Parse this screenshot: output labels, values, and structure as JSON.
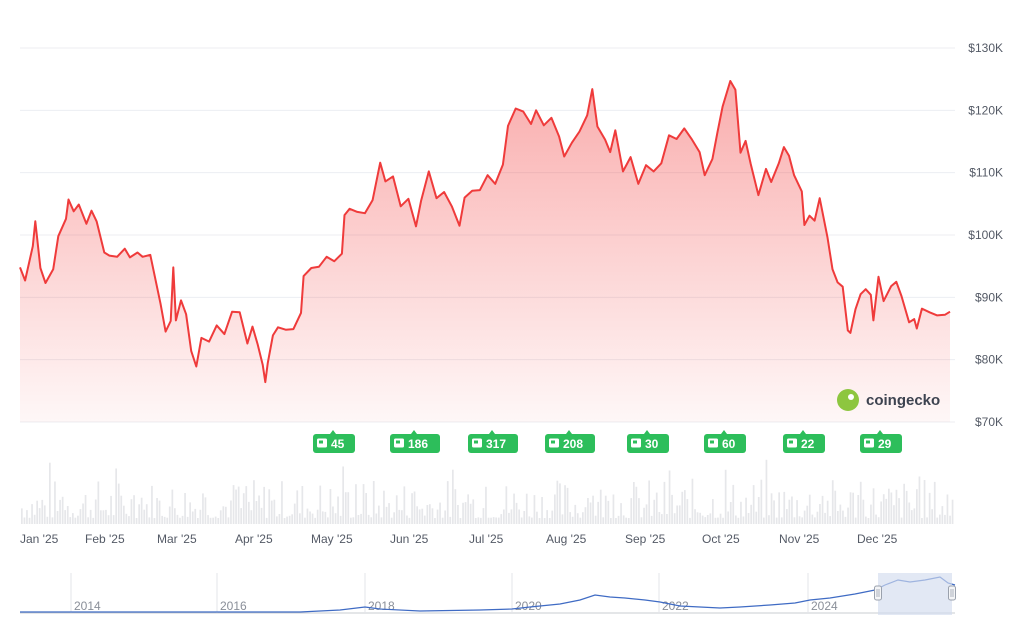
{
  "chart_data": {
    "type": "area",
    "title": "",
    "xlabel": "",
    "ylabel": "",
    "ylim": [
      70000,
      130000
    ],
    "y_ticks": [
      70000,
      80000,
      90000,
      100000,
      110000,
      120000,
      130000
    ],
    "y_tick_labels": [
      "$70K",
      "$80K",
      "$90K",
      "$100K",
      "$110K",
      "$120K",
      "$130K"
    ],
    "x_tick_labels": [
      "Jan '25",
      "Feb '25",
      "Mar '25",
      "Apr '25",
      "May '25",
      "Jun '25",
      "Jul '25",
      "Aug '25",
      "Sep '25",
      "Oct '25",
      "Nov '25",
      "Dec '25"
    ],
    "grid": true,
    "series_color": "#ef3b3b",
    "series": [
      {
        "points": [
          [
            "2025-01-01",
            94800
          ],
          [
            "2025-01-03",
            92700
          ],
          [
            "2025-01-06",
            98200
          ],
          [
            "2025-01-07",
            102200
          ],
          [
            "2025-01-09",
            94700
          ],
          [
            "2025-01-11",
            92300
          ],
          [
            "2025-01-14",
            94500
          ],
          [
            "2025-01-16",
            99800
          ],
          [
            "2025-01-19",
            102600
          ],
          [
            "2025-01-20",
            105700
          ],
          [
            "2025-01-22",
            103800
          ],
          [
            "2025-01-24",
            104900
          ],
          [
            "2025-01-27",
            101800
          ],
          [
            "2025-01-29",
            103900
          ],
          [
            "2025-01-31",
            102200
          ],
          [
            "2025-02-03",
            97200
          ],
          [
            "2025-02-05",
            96700
          ],
          [
            "2025-02-08",
            96500
          ],
          [
            "2025-02-11",
            97800
          ],
          [
            "2025-02-13",
            96400
          ],
          [
            "2025-02-16",
            97200
          ],
          [
            "2025-02-18",
            96500
          ],
          [
            "2025-02-21",
            96800
          ],
          [
            "2025-02-25",
            89000
          ],
          [
            "2025-02-27",
            84500
          ],
          [
            "2025-03-01",
            86200
          ],
          [
            "2025-03-02",
            94800
          ],
          [
            "2025-03-03",
            86300
          ],
          [
            "2025-03-05",
            89500
          ],
          [
            "2025-03-07",
            87300
          ],
          [
            "2025-03-09",
            81400
          ],
          [
            "2025-03-11",
            78900
          ],
          [
            "2025-03-13",
            83500
          ],
          [
            "2025-03-16",
            82900
          ],
          [
            "2025-03-19",
            85500
          ],
          [
            "2025-03-22",
            84100
          ],
          [
            "2025-03-25",
            87700
          ],
          [
            "2025-03-28",
            87600
          ],
          [
            "2025-03-31",
            82600
          ],
          [
            "2025-04-02",
            85300
          ],
          [
            "2025-04-04",
            82500
          ],
          [
            "2025-04-06",
            79200
          ],
          [
            "2025-04-07",
            76400
          ],
          [
            "2025-04-08",
            79500
          ],
          [
            "2025-04-10",
            83900
          ],
          [
            "2025-04-12",
            85200
          ],
          [
            "2025-04-15",
            84800
          ],
          [
            "2025-04-18",
            84900
          ],
          [
            "2025-04-21",
            87500
          ],
          [
            "2025-04-22",
            93400
          ],
          [
            "2025-04-25",
            94700
          ],
          [
            "2025-04-28",
            94900
          ],
          [
            "2025-05-01",
            96500
          ],
          [
            "2025-05-04",
            95800
          ],
          [
            "2025-05-07",
            97000
          ],
          [
            "2025-05-08",
            103200
          ],
          [
            "2025-05-10",
            104200
          ],
          [
            "2025-05-13",
            103700
          ],
          [
            "2025-05-16",
            103500
          ],
          [
            "2025-05-19",
            105600
          ],
          [
            "2025-05-22",
            111600
          ],
          [
            "2025-05-24",
            108600
          ],
          [
            "2025-05-27",
            109400
          ],
          [
            "2025-05-30",
            104600
          ],
          [
            "2025-06-02",
            105800
          ],
          [
            "2025-06-05",
            101400
          ],
          [
            "2025-06-07",
            105500
          ],
          [
            "2025-06-10",
            110200
          ],
          [
            "2025-06-13",
            105900
          ],
          [
            "2025-06-16",
            106900
          ],
          [
            "2025-06-19",
            104600
          ],
          [
            "2025-06-22",
            101500
          ],
          [
            "2025-06-24",
            106000
          ],
          [
            "2025-06-27",
            107100
          ],
          [
            "2025-06-30",
            107200
          ],
          [
            "2025-07-03",
            109600
          ],
          [
            "2025-07-06",
            108200
          ],
          [
            "2025-07-09",
            111300
          ],
          [
            "2025-07-11",
            117500
          ],
          [
            "2025-07-14",
            120300
          ],
          [
            "2025-07-17",
            119800
          ],
          [
            "2025-07-20",
            117800
          ],
          [
            "2025-07-22",
            120000
          ],
          [
            "2025-07-25",
            117600
          ],
          [
            "2025-07-28",
            118800
          ],
          [
            "2025-07-31",
            115800
          ],
          [
            "2025-08-02",
            112600
          ],
          [
            "2025-08-05",
            114800
          ],
          [
            "2025-08-08",
            116600
          ],
          [
            "2025-08-11",
            119200
          ],
          [
            "2025-08-13",
            123400
          ],
          [
            "2025-08-15",
            117400
          ],
          [
            "2025-08-18",
            115300
          ],
          [
            "2025-08-20",
            113300
          ],
          [
            "2025-08-22",
            116800
          ],
          [
            "2025-08-25",
            110200
          ],
          [
            "2025-08-28",
            112500
          ],
          [
            "2025-08-31",
            108200
          ],
          [
            "2025-09-03",
            111200
          ],
          [
            "2025-09-06",
            110200
          ],
          [
            "2025-09-09",
            111500
          ],
          [
            "2025-09-12",
            116000
          ],
          [
            "2025-09-15",
            115400
          ],
          [
            "2025-09-18",
            117100
          ],
          [
            "2025-09-21",
            115300
          ],
          [
            "2025-09-24",
            113300
          ],
          [
            "2025-09-26",
            109600
          ],
          [
            "2025-09-29",
            112200
          ],
          [
            "2025-10-01",
            116500
          ],
          [
            "2025-10-03",
            120600
          ],
          [
            "2025-10-06",
            124700
          ],
          [
            "2025-10-08",
            123300
          ],
          [
            "2025-10-10",
            113200
          ],
          [
            "2025-10-12",
            115100
          ],
          [
            "2025-10-14",
            111400
          ],
          [
            "2025-10-17",
            106400
          ],
          [
            "2025-10-20",
            110600
          ],
          [
            "2025-10-22",
            108500
          ],
          [
            "2025-10-25",
            111500
          ],
          [
            "2025-10-27",
            114100
          ],
          [
            "2025-10-29",
            112700
          ],
          [
            "2025-10-31",
            109600
          ],
          [
            "2025-11-03",
            107000
          ],
          [
            "2025-11-04",
            101600
          ],
          [
            "2025-11-06",
            103100
          ],
          [
            "2025-11-08",
            102300
          ],
          [
            "2025-11-10",
            105900
          ],
          [
            "2025-11-13",
            99700
          ],
          [
            "2025-11-15",
            94500
          ],
          [
            "2025-11-17",
            92400
          ],
          [
            "2025-11-19",
            91700
          ],
          [
            "2025-11-21",
            84700
          ],
          [
            "2025-11-22",
            84300
          ],
          [
            "2025-11-24",
            88100
          ],
          [
            "2025-11-26",
            90500
          ],
          [
            "2025-11-28",
            91300
          ],
          [
            "2025-11-30",
            90400
          ],
          [
            "2025-12-01",
            86300
          ],
          [
            "2025-12-03",
            93300
          ],
          [
            "2025-12-05",
            89400
          ],
          [
            "2025-12-08",
            91800
          ],
          [
            "2025-12-10",
            92500
          ],
          [
            "2025-12-12",
            90200
          ],
          [
            "2025-12-15",
            86000
          ],
          [
            "2025-12-17",
            86500
          ],
          [
            "2025-12-18",
            85000
          ],
          [
            "2025-12-20",
            88200
          ],
          [
            "2025-12-23",
            87600
          ],
          [
            "2025-12-26",
            87100
          ],
          [
            "2025-12-29",
            87200
          ],
          [
            "2025-12-31",
            87700
          ]
        ]
      }
    ],
    "news_badges": [
      {
        "month": "May '25",
        "count": "45"
      },
      {
        "month": "Jun '25",
        "count": "186"
      },
      {
        "month": "Jul '25",
        "count": "317"
      },
      {
        "month": "Aug '25",
        "count": "208"
      },
      {
        "month": "Sep '25",
        "count": "30"
      },
      {
        "month": "Oct '25",
        "count": "60"
      },
      {
        "month": "Nov '25",
        "count": "22"
      },
      {
        "month": "Dec '25",
        "count": "29"
      }
    ],
    "navigator": {
      "labels": [
        "2014",
        "2016",
        "2018",
        "2020",
        "2022",
        "2024"
      ]
    },
    "watermark": "coingecko"
  }
}
